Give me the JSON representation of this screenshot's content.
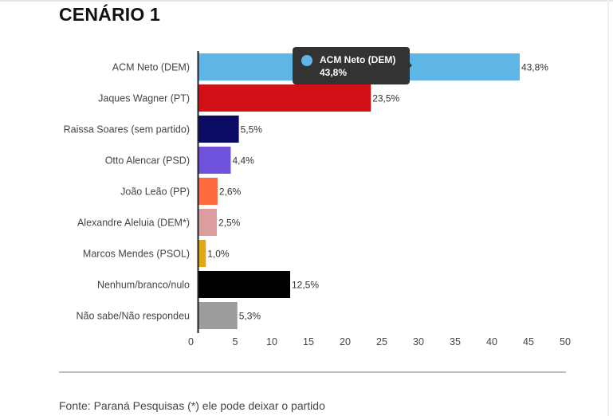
{
  "title": "CENÁRIO 1",
  "source": "Fonte: Paraná Pesquisas  (*) ele pode deixar o partido",
  "tooltip": {
    "name": "ACM Neto (DEM)",
    "value": "43,8%",
    "color": "#5eb6e6"
  },
  "chart_data": {
    "type": "bar",
    "orientation": "horizontal",
    "categories": [
      "ACM Neto (DEM)",
      "Jaques Wagner (PT)",
      "Raissa Soares (sem partido)",
      "Otto Alencar (PSD)",
      "João Leão (PP)",
      "Alexandre Aleluia (DEM*)",
      "Marcos Mendes (PSOL)",
      "Nenhum/branco/nulo",
      "Não sabe/Não respondeu"
    ],
    "values": [
      43.8,
      23.5,
      5.5,
      4.4,
      2.6,
      2.5,
      1.0,
      12.5,
      5.3
    ],
    "value_labels": [
      "43,8%",
      "23,5%",
      "5,5%",
      "4,4%",
      "2,6%",
      "2,5%",
      "1,0%",
      "12,5%",
      "5,3%"
    ],
    "colors": [
      "#5eb6e6",
      "#d11116",
      "#0b0b63",
      "#6e52db",
      "#fe6c3d",
      "#dc9d9f",
      "#e3a715",
      "#000000",
      "#9c9c9c"
    ],
    "xlim": [
      0,
      50
    ],
    "x_ticks": [
      "0",
      "5",
      "10",
      "15",
      "20",
      "25",
      "30",
      "35",
      "40",
      "45",
      "50"
    ],
    "grid": false,
    "legend": "none"
  }
}
